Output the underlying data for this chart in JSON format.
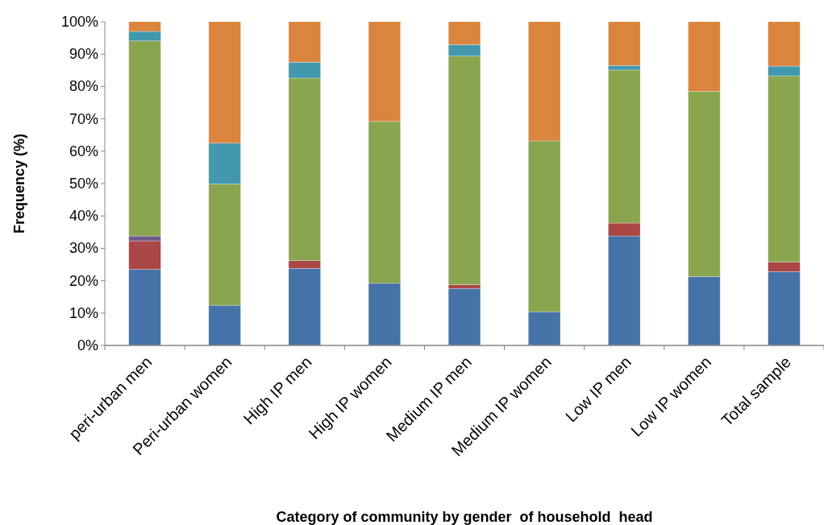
{
  "chart_data": {
    "type": "bar",
    "stacked": true,
    "xlabel": "Category of community by gender  of household  head",
    "ylabel": "Frequency (%)",
    "categories": [
      "peri-urban men",
      "Peri-urban women",
      "High IP men",
      "High IP women",
      "Medium IP men",
      "Medium IP women",
      "Low IP men",
      "Low IP women",
      "Total sample"
    ],
    "series": [
      {
        "color": "#4572a7",
        "values": [
          23.5,
          12.4,
          23.8,
          19.2,
          17.6,
          10.4,
          33.8,
          21.3,
          22.8
        ]
      },
      {
        "color": "#aa4643",
        "values": [
          8.8,
          0,
          2.4,
          0,
          1.2,
          0,
          4.0,
          0,
          3.0
        ]
      },
      {
        "color": "#71588f",
        "values": [
          1.5,
          0,
          0,
          0,
          0,
          0,
          0,
          0,
          0
        ]
      },
      {
        "color": "#89a54e",
        "values": [
          60.3,
          37.5,
          56.4,
          50.0,
          70.6,
          52.8,
          47.3,
          57.2,
          57.5
        ]
      },
      {
        "color": "#4198af",
        "values": [
          2.9,
          12.6,
          4.9,
          0,
          3.5,
          0,
          1.4,
          0,
          3.0
        ]
      },
      {
        "color": "#db843d",
        "values": [
          3.0,
          37.5,
          12.5,
          30.8,
          7.1,
          36.8,
          13.5,
          21.5,
          13.7
        ]
      }
    ],
    "ylim": [
      0,
      100
    ],
    "yticks": [
      {
        "value": 0,
        "label": "0%"
      },
      {
        "value": 10,
        "label": "10%"
      },
      {
        "value": 20,
        "label": "20%"
      },
      {
        "value": 30,
        "label": "30%"
      },
      {
        "value": 40,
        "label": "40%"
      },
      {
        "value": 50,
        "label": "50%"
      },
      {
        "value": 60,
        "label": "60%"
      },
      {
        "value": 70,
        "label": "70%"
      },
      {
        "value": 80,
        "label": "80%"
      },
      {
        "value": 90,
        "label": "90%"
      },
      {
        "value": 100,
        "label": "100%"
      }
    ],
    "grid": false
  }
}
